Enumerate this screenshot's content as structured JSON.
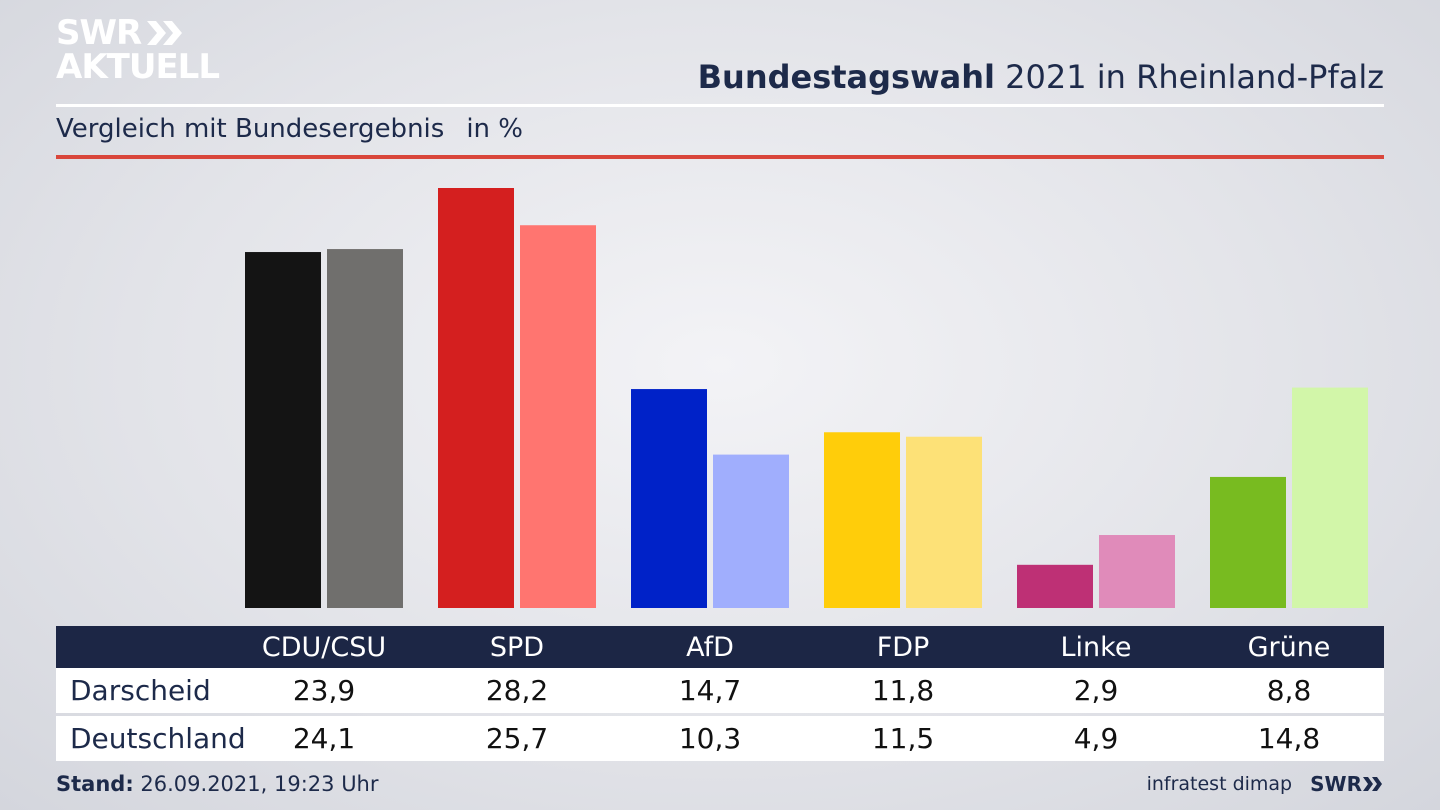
{
  "logo": {
    "line1": "SWR",
    "line2": "AKTUELL"
  },
  "header": {
    "title_bold": "Bundestagswahl",
    "title_rest": "2021 in Rheinland-Pfalz",
    "subtitle": "Vergleich mit Bundesergebnis",
    "unit": "in %"
  },
  "colors": {
    "navy": "#1c2645",
    "red_rule": "#d9463b",
    "parties": [
      {
        "local": "#141414",
        "national": "#706f6d"
      },
      {
        "local": "#d41f1f",
        "national": "#ff7570"
      },
      {
        "local": "#0022c8",
        "national": "#a0aefd"
      },
      {
        "local": "#ffcd0a",
        "national": "#fde177"
      },
      {
        "local": "#be3075",
        "national": "#e08bba"
      },
      {
        "local": "#78bb20",
        "national": "#d2f6a9"
      }
    ]
  },
  "chart_data": {
    "type": "bar",
    "categories": [
      "CDU/CSU",
      "SPD",
      "AfD",
      "FDP",
      "Linke",
      "Grüne"
    ],
    "series": [
      {
        "name": "Darscheid",
        "values": [
          23.9,
          28.2,
          14.7,
          11.8,
          2.9,
          8.8
        ]
      },
      {
        "name": "Deutschland",
        "values": [
          24.1,
          25.7,
          10.3,
          11.5,
          4.9,
          14.8
        ]
      }
    ],
    "title": "Bundestagswahl 2021 in Rheinland-Pfalz",
    "subtitle": "Vergleich mit Bundesergebnis",
    "unit": "in %",
    "ylim": [
      0,
      28.2
    ],
    "grid": false
  },
  "table": {
    "row1_label": "Darscheid",
    "row2_label": "Deutschland",
    "row1_values": [
      "23,9",
      "28,2",
      "14,7",
      "11,8",
      "2,9",
      "8,8"
    ],
    "row2_values": [
      "24,1",
      "25,7",
      "10,3",
      "11,5",
      "4,9",
      "14,8"
    ]
  },
  "footer": {
    "stand_label": "Stand:",
    "stand_value": "26.09.2021, 19:23 Uhr",
    "source": "infratest dimap",
    "brand": "SWR"
  }
}
